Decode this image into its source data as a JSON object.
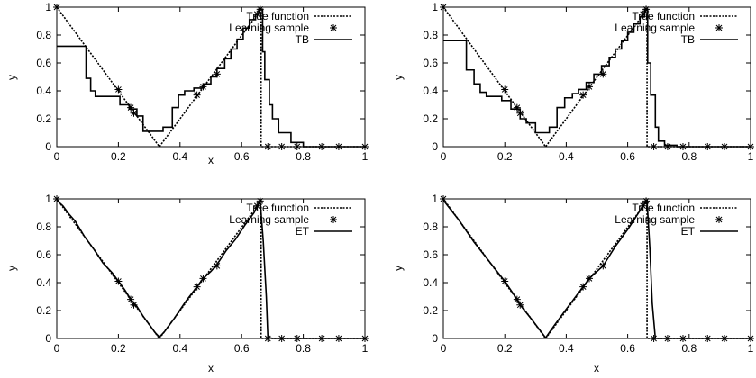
{
  "chart_data": [
    {
      "type": "line",
      "xlabel": "x",
      "ylabel": "y",
      "xlim": [
        0,
        1
      ],
      "ylim": [
        0,
        1
      ],
      "xticks": [
        "0",
        "0.2",
        "0.4",
        "0.6",
        "0.8",
        "1"
      ],
      "yticks": [
        "0",
        "0.2",
        "0.4",
        "0.6",
        "0.8",
        "1"
      ],
      "legend_position": "top-right",
      "series": [
        {
          "name": "True function",
          "style": "dotted",
          "x": [
            0,
            0.333,
            0.663,
            0.663,
            1
          ],
          "y": [
            1,
            0,
            0.985,
            0,
            0
          ]
        },
        {
          "name": "Learning sample",
          "style": "points",
          "x": [
            0,
            0.2,
            0.24,
            0.25,
            0.455,
            0.475,
            0.52,
            0.65,
            0.66,
            0.685,
            0.73,
            0.78,
            0.86,
            0.915,
            1.0
          ],
          "y": [
            1,
            0.41,
            0.28,
            0.24,
            0.37,
            0.43,
            0.52,
            0.95,
            0.985,
            0,
            0,
            0,
            0,
            0,
            0
          ]
        },
        {
          "name": "TB",
          "style": "solid",
          "x": [
            0,
            0.095,
            0.095,
            0.11,
            0.11,
            0.125,
            0.125,
            0.205,
            0.205,
            0.235,
            0.235,
            0.26,
            0.26,
            0.28,
            0.28,
            0.3,
            0.3,
            0.345,
            0.345,
            0.375,
            0.375,
            0.395,
            0.395,
            0.415,
            0.415,
            0.445,
            0.445,
            0.475,
            0.475,
            0.5,
            0.5,
            0.52,
            0.52,
            0.545,
            0.545,
            0.565,
            0.565,
            0.585,
            0.585,
            0.605,
            0.605,
            0.625,
            0.625,
            0.645,
            0.645,
            0.655,
            0.655,
            0.668,
            0.668,
            0.675,
            0.675,
            0.69,
            0.69,
            0.7,
            0.7,
            0.72,
            0.72,
            0.76,
            0.76,
            0.8,
            0.8,
            1.0
          ],
          "y": [
            0.72,
            0.72,
            0.49,
            0.49,
            0.4,
            0.4,
            0.36,
            0.36,
            0.3,
            0.3,
            0.27,
            0.27,
            0.22,
            0.22,
            0.11,
            0.11,
            0.11,
            0.11,
            0.14,
            0.14,
            0.28,
            0.28,
            0.37,
            0.37,
            0.4,
            0.4,
            0.42,
            0.42,
            0.45,
            0.45,
            0.5,
            0.5,
            0.56,
            0.56,
            0.63,
            0.63,
            0.7,
            0.7,
            0.77,
            0.77,
            0.85,
            0.85,
            0.91,
            0.91,
            0.95,
            0.95,
            0.985,
            0.985,
            0.68,
            0.68,
            0.48,
            0.48,
            0.3,
            0.3,
            0.2,
            0.2,
            0.1,
            0.1,
            0.03,
            0.03,
            0.0,
            0.0
          ]
        }
      ]
    },
    {
      "type": "line",
      "xlabel": "",
      "ylabel": "y",
      "xlim": [
        0,
        1
      ],
      "ylim": [
        0,
        1
      ],
      "xticks": [
        "0",
        "0.2",
        "0.4",
        "0.6",
        "0.8",
        "1"
      ],
      "yticks": [
        "0",
        "0.2",
        "0.4",
        "0.6",
        "0.8",
        "1"
      ],
      "legend_position": "top-right",
      "series": [
        {
          "name": "True function",
          "style": "dotted",
          "x": [
            0,
            0.333,
            0.663,
            0.663,
            1
          ],
          "y": [
            1,
            0,
            0.985,
            0,
            0
          ]
        },
        {
          "name": "Learning sample",
          "style": "points",
          "x": [
            0,
            0.2,
            0.24,
            0.25,
            0.455,
            0.475,
            0.52,
            0.65,
            0.66,
            0.685,
            0.73,
            0.78,
            0.86,
            0.915,
            1.0
          ],
          "y": [
            1,
            0.41,
            0.28,
            0.24,
            0.37,
            0.43,
            0.52,
            0.95,
            0.985,
            0,
            0,
            0,
            0,
            0,
            0
          ]
        },
        {
          "name": "TB",
          "style": "solid",
          "x": [
            0,
            0.075,
            0.075,
            0.1,
            0.1,
            0.12,
            0.12,
            0.14,
            0.14,
            0.19,
            0.19,
            0.22,
            0.22,
            0.25,
            0.25,
            0.27,
            0.27,
            0.3,
            0.3,
            0.345,
            0.345,
            0.37,
            0.37,
            0.395,
            0.395,
            0.42,
            0.42,
            0.44,
            0.44,
            0.465,
            0.465,
            0.49,
            0.49,
            0.515,
            0.515,
            0.54,
            0.54,
            0.56,
            0.56,
            0.58,
            0.58,
            0.6,
            0.6,
            0.62,
            0.62,
            0.64,
            0.64,
            0.655,
            0.655,
            0.665,
            0.665,
            0.675,
            0.675,
            0.69,
            0.69,
            0.7,
            0.7,
            0.72,
            0.72,
            0.76,
            0.76,
            1.0
          ],
          "y": [
            0.76,
            0.76,
            0.55,
            0.55,
            0.45,
            0.45,
            0.39,
            0.39,
            0.36,
            0.36,
            0.33,
            0.33,
            0.27,
            0.27,
            0.2,
            0.2,
            0.17,
            0.17,
            0.1,
            0.1,
            0.14,
            0.14,
            0.28,
            0.28,
            0.35,
            0.35,
            0.38,
            0.38,
            0.41,
            0.41,
            0.46,
            0.46,
            0.52,
            0.52,
            0.58,
            0.58,
            0.64,
            0.64,
            0.7,
            0.7,
            0.76,
            0.76,
            0.82,
            0.82,
            0.88,
            0.88,
            0.93,
            0.93,
            0.985,
            0.985,
            0.6,
            0.6,
            0.37,
            0.37,
            0.14,
            0.14,
            0.04,
            0.04,
            0.01,
            0.01,
            0.0,
            0.0
          ]
        }
      ]
    },
    {
      "type": "line",
      "xlabel": "x",
      "ylabel": "y",
      "xlim": [
        0,
        1
      ],
      "ylim": [
        0,
        1
      ],
      "xticks": [
        "0",
        "0.2",
        "0.4",
        "0.6",
        "0.8",
        "1"
      ],
      "yticks": [
        "0",
        "0.2",
        "0.4",
        "0.6",
        "0.8",
        "1"
      ],
      "legend_position": "top-right",
      "series": [
        {
          "name": "True function",
          "style": "dotted",
          "x": [
            0,
            0.333,
            0.663,
            0.663,
            1
          ],
          "y": [
            1,
            0,
            0.985,
            0,
            0
          ]
        },
        {
          "name": "Learning sample",
          "style": "points",
          "x": [
            0,
            0.2,
            0.24,
            0.25,
            0.455,
            0.475,
            0.52,
            0.65,
            0.66,
            0.685,
            0.73,
            0.78,
            0.86,
            0.915,
            1.0
          ],
          "y": [
            1,
            0.41,
            0.28,
            0.24,
            0.37,
            0.43,
            0.52,
            0.95,
            0.985,
            0,
            0,
            0,
            0,
            0,
            0
          ]
        },
        {
          "name": "ET",
          "style": "solid",
          "x": [
            0,
            0.02,
            0.04,
            0.06,
            0.09,
            0.12,
            0.15,
            0.18,
            0.2,
            0.22,
            0.24,
            0.26,
            0.28,
            0.3,
            0.32,
            0.333,
            0.35,
            0.38,
            0.42,
            0.455,
            0.475,
            0.5,
            0.52,
            0.55,
            0.58,
            0.61,
            0.64,
            0.66,
            0.67,
            0.68,
            0.685,
            0.7,
            1.0
          ],
          "y": [
            0.99,
            0.95,
            0.89,
            0.84,
            0.73,
            0.64,
            0.54,
            0.47,
            0.41,
            0.35,
            0.28,
            0.23,
            0.16,
            0.1,
            0.04,
            0.01,
            0.05,
            0.14,
            0.27,
            0.37,
            0.43,
            0.48,
            0.53,
            0.63,
            0.71,
            0.81,
            0.9,
            0.985,
            0.7,
            0.3,
            0.01,
            0.0,
            0.0
          ]
        }
      ]
    },
    {
      "type": "line",
      "xlabel": "x",
      "ylabel": "y",
      "xlim": [
        0,
        1
      ],
      "ylim": [
        0,
        1
      ],
      "xticks": [
        "0",
        "0.2",
        "0.4",
        "0.6",
        "0.8",
        "1"
      ],
      "yticks": [
        "0",
        "0.2",
        "0.4",
        "0.6",
        "0.8",
        "1"
      ],
      "legend_position": "top-right",
      "series": [
        {
          "name": "True function",
          "style": "dotted",
          "x": [
            0,
            0.333,
            0.663,
            0.663,
            1
          ],
          "y": [
            1,
            0,
            0.985,
            0,
            0
          ]
        },
        {
          "name": "Learning sample",
          "style": "points",
          "x": [
            0,
            0.2,
            0.24,
            0.25,
            0.455,
            0.475,
            0.52,
            0.65,
            0.66,
            0.685,
            0.73,
            0.78,
            0.86,
            0.915,
            1.0
          ],
          "y": [
            1,
            0.41,
            0.28,
            0.24,
            0.37,
            0.43,
            0.52,
            0.95,
            0.985,
            0,
            0,
            0,
            0,
            0,
            0
          ]
        },
        {
          "name": "ET",
          "style": "solid",
          "x": [
            0,
            0.05,
            0.1,
            0.15,
            0.2,
            0.24,
            0.25,
            0.29,
            0.333,
            0.36,
            0.4,
            0.455,
            0.475,
            0.52,
            0.56,
            0.6,
            0.65,
            0.663,
            0.672,
            0.68,
            0.69,
            0.72,
            1.0
          ],
          "y": [
            0.99,
            0.85,
            0.69,
            0.55,
            0.41,
            0.28,
            0.24,
            0.13,
            0.005,
            0.09,
            0.21,
            0.37,
            0.43,
            0.52,
            0.66,
            0.78,
            0.95,
            0.985,
            0.65,
            0.25,
            0.0,
            0.0,
            0.0
          ]
        }
      ]
    }
  ]
}
